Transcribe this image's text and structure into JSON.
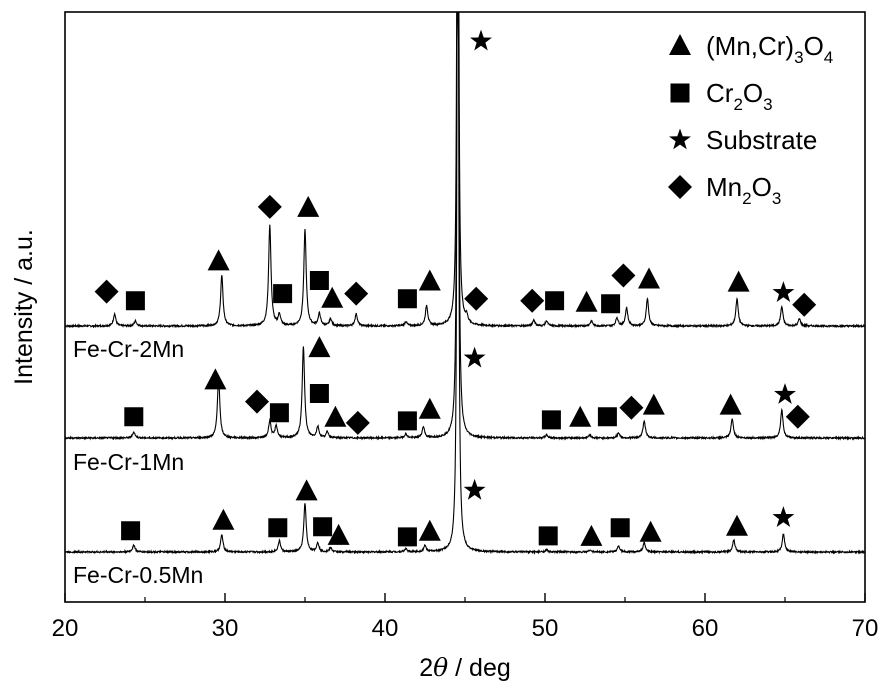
{
  "chart_data": {
    "type": "line",
    "xlabel": {
      "prefix": "2",
      "symbol": "θ",
      "suffix": " / deg"
    },
    "ylabel": "Intensity / a.u.",
    "xlim": [
      20,
      70
    ],
    "xticks": [
      20,
      30,
      40,
      50,
      60,
      70
    ],
    "legend": {
      "position": "top-right",
      "items": [
        {
          "marker": "triangle",
          "parts": [
            [
              "(Mn,Cr)",
              ""
            ],
            [
              "3",
              "sub"
            ],
            [
              "O",
              ""
            ],
            [
              "4",
              "sub"
            ]
          ]
        },
        {
          "marker": "square",
          "parts": [
            [
              "Cr",
              ""
            ],
            [
              "2",
              "sub"
            ],
            [
              "O",
              ""
            ],
            [
              "3",
              "sub"
            ]
          ]
        },
        {
          "marker": "star",
          "parts": [
            [
              "Substrate",
              ""
            ]
          ]
        },
        {
          "marker": "diamond",
          "parts": [
            [
              "Mn",
              ""
            ],
            [
              "2",
              "sub"
            ],
            [
              "O",
              ""
            ],
            [
              "3",
              "sub"
            ]
          ]
        }
      ]
    },
    "series": [
      {
        "name": "Fe-Cr-2Mn",
        "baseline": 0.0,
        "peaks": [
          [
            23.1,
            0.012
          ],
          [
            24.4,
            0.005
          ],
          [
            29.8,
            0.05
          ],
          [
            32.8,
            0.1
          ],
          [
            33.4,
            0.011
          ],
          [
            35.0,
            0.095
          ],
          [
            35.9,
            0.012
          ],
          [
            36.6,
            0.007
          ],
          [
            38.2,
            0.012
          ],
          [
            41.3,
            0.004
          ],
          [
            42.6,
            0.02
          ],
          [
            44.55,
            0.95
          ],
          [
            45.1,
            0.007
          ],
          [
            49.3,
            0.006
          ],
          [
            50.1,
            0.005
          ],
          [
            52.9,
            0.005
          ],
          [
            54.5,
            0.008
          ],
          [
            55.1,
            0.018
          ],
          [
            56.4,
            0.027
          ],
          [
            62.0,
            0.027
          ],
          [
            64.8,
            0.019
          ],
          [
            65.9,
            0.007
          ]
        ],
        "markers": [
          [
            "diamond",
            22.6,
            0.034
          ],
          [
            "square",
            24.4,
            0.025
          ],
          [
            "triangle",
            29.6,
            0.064
          ],
          [
            "diamond",
            32.8,
            0.118
          ],
          [
            "triangle",
            35.2,
            0.117
          ],
          [
            "square",
            33.6,
            0.032
          ],
          [
            "square",
            35.9,
            0.045
          ],
          [
            "triangle",
            36.7,
            0.027
          ],
          [
            "diamond",
            38.2,
            0.032
          ],
          [
            "square",
            41.4,
            0.027
          ],
          [
            "triangle",
            42.8,
            0.044
          ],
          [
            "diamond",
            45.7,
            0.027
          ],
          [
            "diamond",
            49.2,
            0.025
          ],
          [
            "square",
            50.6,
            0.025
          ],
          [
            "triangle",
            52.6,
            0.023
          ],
          [
            "square",
            54.1,
            0.022
          ],
          [
            "diamond",
            54.9,
            0.05
          ],
          [
            "triangle",
            56.5,
            0.046
          ],
          [
            "triangle",
            62.1,
            0.043
          ],
          [
            "star",
            64.9,
            0.033
          ],
          [
            "diamond",
            66.2,
            0.021
          ],
          [
            "star",
            46.0,
            0.282
          ]
        ]
      },
      {
        "name": "Fe-Cr-1Mn",
        "baseline": 0.0,
        "peaks": [
          [
            24.3,
            0.006
          ],
          [
            29.6,
            0.06
          ],
          [
            32.8,
            0.017
          ],
          [
            33.2,
            0.012
          ],
          [
            34.9,
            0.091
          ],
          [
            35.8,
            0.011
          ],
          [
            36.4,
            0.006
          ],
          [
            41.3,
            0.004
          ],
          [
            42.4,
            0.011
          ],
          [
            44.55,
            1.0
          ],
          [
            50.1,
            0.003
          ],
          [
            52.8,
            0.003
          ],
          [
            54.6,
            0.005
          ],
          [
            56.2,
            0.017
          ],
          [
            61.7,
            0.019
          ],
          [
            64.8,
            0.028
          ]
        ],
        "markers": [
          [
            "square",
            24.3,
            0.021
          ],
          [
            "triangle",
            29.4,
            0.057
          ],
          [
            "diamond",
            32.0,
            0.036
          ],
          [
            "square",
            33.4,
            0.025
          ],
          [
            "triangle",
            35.9,
            0.089
          ],
          [
            "square",
            35.9,
            0.044
          ],
          [
            "triangle",
            36.9,
            0.02
          ],
          [
            "diamond",
            38.3,
            0.015
          ],
          [
            "square",
            41.4,
            0.017
          ],
          [
            "triangle",
            42.8,
            0.028
          ],
          [
            "square",
            50.4,
            0.018
          ],
          [
            "triangle",
            52.2,
            0.02
          ],
          [
            "square",
            53.9,
            0.021
          ],
          [
            "diamond",
            55.4,
            0.03
          ],
          [
            "triangle",
            56.8,
            0.032
          ],
          [
            "triangle",
            61.6,
            0.032
          ],
          [
            "star",
            65.0,
            0.043
          ],
          [
            "diamond",
            65.8,
            0.021
          ],
          [
            "star",
            45.6,
            0.079
          ]
        ]
      },
      {
        "name": "Fe-Cr-0.5Mn",
        "baseline": 0.0,
        "peaks": [
          [
            24.3,
            0.007
          ],
          [
            29.8,
            0.017
          ],
          [
            33.4,
            0.011
          ],
          [
            35.0,
            0.048
          ],
          [
            35.8,
            0.009
          ],
          [
            36.6,
            0.004
          ],
          [
            41.3,
            0.003
          ],
          [
            42.5,
            0.006
          ],
          [
            44.55,
            1.0
          ],
          [
            50.1,
            0.002
          ],
          [
            52.8,
            0.002
          ],
          [
            54.6,
            0.006
          ],
          [
            56.2,
            0.009
          ],
          [
            61.8,
            0.012
          ],
          [
            64.9,
            0.018
          ]
        ],
        "markers": [
          [
            "square",
            24.1,
            0.021
          ],
          [
            "triangle",
            29.9,
            0.031
          ],
          [
            "square",
            33.3,
            0.024
          ],
          [
            "triangle",
            35.1,
            0.06
          ],
          [
            "square",
            36.1,
            0.025
          ],
          [
            "triangle",
            37.1,
            0.016
          ],
          [
            "square",
            41.4,
            0.015
          ],
          [
            "triangle",
            42.8,
            0.02
          ],
          [
            "square",
            50.2,
            0.016
          ],
          [
            "triangle",
            52.9,
            0.015
          ],
          [
            "square",
            54.7,
            0.024
          ],
          [
            "triangle",
            56.6,
            0.019
          ],
          [
            "triangle",
            62.0,
            0.025
          ],
          [
            "star",
            64.9,
            0.034
          ],
          [
            "star",
            45.6,
            0.061
          ]
        ]
      }
    ]
  }
}
